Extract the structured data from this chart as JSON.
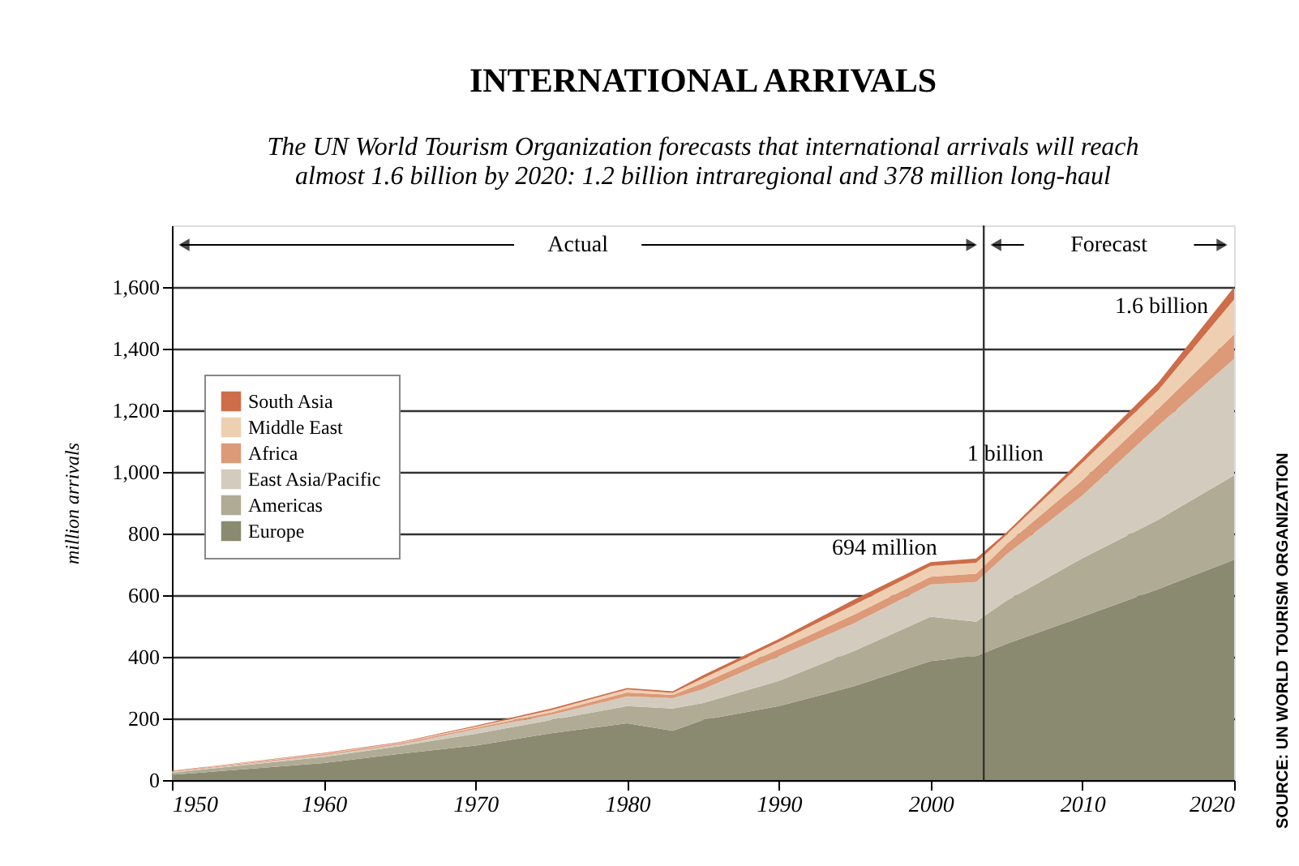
{
  "chart_data": {
    "type": "area",
    "stacked": true,
    "title": "INTERNATIONAL ARRIVALS",
    "subtitle": "The UN World Tourism Organization forecasts that international arrivals will reach\nalmost 1.6 billion by 2020: 1.2 billion intraregional and 378 million long-haul",
    "ylabel": "million arrivals",
    "x": [
      1950,
      1960,
      1965,
      1970,
      1975,
      1980,
      1983,
      1985,
      1990,
      1995,
      2000,
      2003,
      2005,
      2010,
      2015,
      2020
    ],
    "series": [
      {
        "name": "Europe",
        "color": "#8a8a70",
        "values": [
          17,
          55,
          85,
          112,
          152,
          184,
          160,
          195,
          240,
          305,
          386,
          402,
          442,
          530,
          620,
          715
        ]
      },
      {
        "name": "Americas",
        "color": "#b0ab95",
        "values": [
          7,
          20,
          25,
          38,
          43,
          56,
          72,
          55,
          82,
          115,
          144,
          112,
          140,
          190,
          225,
          274
        ]
      },
      {
        "name": "East Asia/Pacific",
        "color": "#d3ccbe",
        "values": [
          2,
          5,
          5,
          15,
          17,
          32,
          34,
          45,
          80,
          90,
          105,
          129,
          150,
          204,
          305,
          378
        ]
      },
      {
        "name": "Africa",
        "color": "#dc9a78",
        "values": [
          2,
          4,
          4,
          5,
          8,
          12,
          10,
          20,
          23,
          28,
          25,
          27,
          34,
          49,
          55,
          80
        ]
      },
      {
        "name": "Middle East",
        "color": "#efcfb2",
        "values": [
          1,
          2,
          2,
          3,
          7,
          10,
          7,
          15,
          23,
          32,
          35,
          35,
          30,
          57,
          60,
          113
        ]
      },
      {
        "name": "South Asia",
        "color": "#cd6d4a",
        "values": [
          1,
          2,
          2,
          3,
          5,
          5,
          5,
          10,
          10,
          17,
          12,
          14,
          8,
          15,
          25,
          40
        ]
      }
    ],
    "xlim": [
      1950,
      2020
    ],
    "xticks": [
      1950,
      1960,
      1970,
      1980,
      1990,
      2000,
      2010,
      2020
    ],
    "ylim": [
      0,
      1800
    ],
    "yticks": [
      0,
      200,
      400,
      600,
      800,
      {
        "value": 1000,
        "label": "1,000"
      },
      {
        "value": 1200,
        "label": "1,200"
      },
      {
        "value": 1400,
        "label": "1,400"
      },
      {
        "value": 1600,
        "label": "1,600"
      }
    ],
    "grid": "y",
    "legend": "left",
    "ref_lines": [
      {
        "axis": "x",
        "value": 2003.5,
        "color": "#333333"
      }
    ],
    "annotations": [
      "Actual",
      "Forecast",
      {
        "text": "1.6 billion",
        "x": 2020,
        "y": 1600
      },
      {
        "text": "1 billion",
        "x": 2010,
        "y": 1000
      },
      {
        "text": "694 million",
        "x": 2003,
        "y": 694
      },
      "SOURCE: UN WORLD TOURISM ORGANIZATION"
    ]
  }
}
